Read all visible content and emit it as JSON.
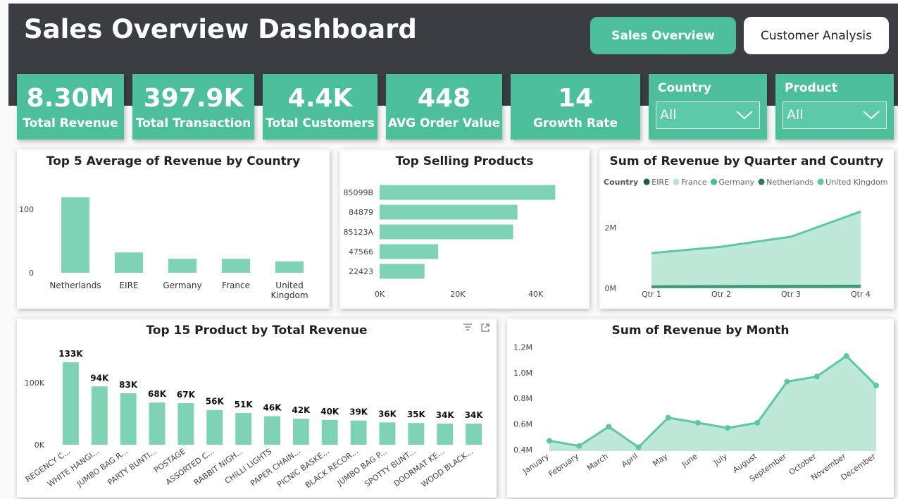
{
  "header": {
    "title": "Sales Overview Dashboard",
    "buttons": [
      "Sales Overview",
      "Customer Analysis"
    ]
  },
  "kpis": [
    {
      "value": "8.30M",
      "label": "Total Revenue"
    },
    {
      "value": "397.9K",
      "label": "Total Transaction"
    },
    {
      "value": "4.4K",
      "label": "Total Customers"
    },
    {
      "value": "448",
      "label": "AVG Order Value"
    },
    {
      "value": "14",
      "label": "Growth Rate"
    }
  ],
  "filters": [
    {
      "label": "Country",
      "value": "All"
    },
    {
      "label": "Product",
      "value": "All"
    }
  ],
  "chart_data": [
    {
      "type": "bar",
      "title": "Top 5 Average of Revenue by Country",
      "categories": [
        "Netherlands",
        "EIRE",
        "Germany",
        "France",
        "United Kingdom"
      ],
      "values": [
        119,
        32,
        22,
        22,
        18
      ],
      "color": "#7dd3b4",
      "ylim": [
        0,
        130
      ],
      "yticks": [
        0,
        100
      ]
    },
    {
      "type": "barh",
      "title": "Top Selling Products",
      "categories": [
        "85099B",
        "84879",
        "85123A",
        "47566",
        "22423"
      ],
      "values": [
        45000,
        35300,
        34200,
        15000,
        11500
      ],
      "color": "#7dd3b4",
      "xlim": [
        0,
        48000
      ],
      "xticks": [
        {
          "value": 0,
          "label": "0K"
        },
        {
          "value": 20000,
          "label": "20K"
        },
        {
          "value": 40000,
          "label": "40K"
        }
      ]
    },
    {
      "type": "area",
      "title": "Sum of Revenue by Quarter and Country",
      "categories": [
        "Qtr 1",
        "Qtr 2",
        "Qtr 3",
        "Qtr 4"
      ],
      "legend_title": "Country",
      "legend": "top-left",
      "series": [
        {
          "name": "EIRE",
          "color": "#1d5e46",
          "values": [
            60000,
            70000,
            75000,
            80000
          ]
        },
        {
          "name": "France",
          "color": "#b9e5d5",
          "values": [
            40000,
            45000,
            50000,
            60000
          ]
        },
        {
          "name": "Germany",
          "color": "#3fbf92",
          "values": [
            45000,
            50000,
            55000,
            65000
          ]
        },
        {
          "name": "Netherlands",
          "color": "#2b7a5d",
          "values": [
            50000,
            55000,
            60000,
            70000
          ]
        },
        {
          "name": "United Kingdom",
          "color": "#5cc8a0",
          "values": [
            1160000,
            1370000,
            1700000,
            2530000
          ]
        }
      ],
      "ylim": [
        0,
        3000000
      ],
      "yticks": [
        {
          "value": 0,
          "label": "0M"
        },
        {
          "value": 2000000,
          "label": "2M"
        }
      ]
    },
    {
      "type": "bar",
      "title": "Top 15 Product by Total Revenue",
      "categories": [
        "REGENCY C...",
        "WHITE HANGI...",
        "JUMBO BAG R...",
        "PARTY BUNTI...",
        "POSTAGE",
        "ASSORTED C...",
        "RABBIT NIGH...",
        "CHILLI LIGHTS",
        "PAPER CHAIN...",
        "PICNIC BASKE...",
        "BLACK RECOR...",
        "JUMBO BAG P...",
        "SPOTTY BUNT...",
        "DOORMAT KE...",
        "WOOD BLACK..."
      ],
      "values": [
        133000,
        94000,
        83000,
        68000,
        67000,
        56000,
        51000,
        46000,
        42000,
        40000,
        39000,
        36000,
        35000,
        34000,
        34000
      ],
      "value_labels": [
        "133K",
        "94K",
        "83K",
        "68K",
        "67K",
        "56K",
        "51K",
        "46K",
        "42K",
        "40K",
        "39K",
        "36K",
        "35K",
        "34K",
        "34K"
      ],
      "color": "#7dd3b4",
      "ylim": [
        0,
        150000
      ],
      "yticks": [
        {
          "value": 0,
          "label": "0K"
        },
        {
          "value": 100000,
          "label": "100K"
        }
      ]
    },
    {
      "type": "area",
      "title": "Sum of Revenue by Month",
      "categories": [
        "January",
        "February",
        "March",
        "April",
        "May",
        "June",
        "July",
        "August",
        "September",
        "October",
        "November",
        "December"
      ],
      "values": [
        470000,
        430000,
        580000,
        420000,
        650000,
        610000,
        570000,
        610000,
        930000,
        970000,
        1130000,
        900000
      ],
      "color": "#5cc8a0",
      "markers": true,
      "ylim": [
        390000,
        1240000
      ],
      "yticks": [
        {
          "value": 400000,
          "label": "0.4M"
        },
        {
          "value": 600000,
          "label": "0.6M"
        },
        {
          "value": 800000,
          "label": "0.8M"
        },
        {
          "value": 1000000,
          "label": "1.0M"
        },
        {
          "value": 1200000,
          "label": "1.2M"
        }
      ]
    }
  ]
}
